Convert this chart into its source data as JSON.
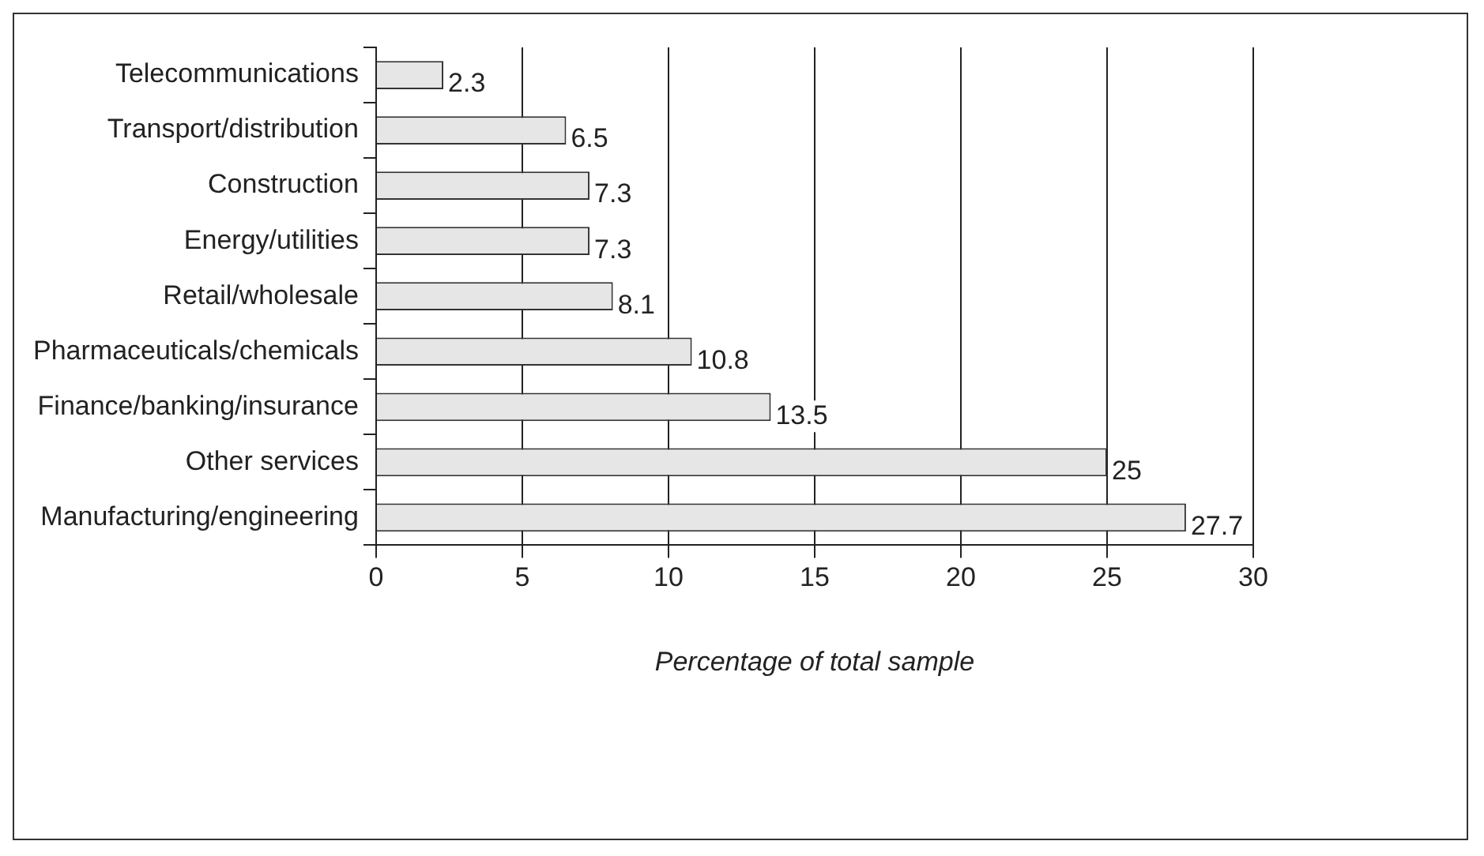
{
  "chart_data": {
    "type": "bar",
    "orientation": "horizontal",
    "xlabel": "Percentage of total sample",
    "categories": [
      "Telecommunications",
      "Transport/distribution",
      "Construction",
      "Energy/utilities",
      "Retail/wholesale",
      "Pharmaceuticals/chemicals",
      "Finance/banking/insurance",
      "Other services",
      "Manufacturing/engineering"
    ],
    "values": [
      2.3,
      6.5,
      7.3,
      7.3,
      8.1,
      10.8,
      13.5,
      25,
      27.7
    ],
    "color": "#e6e6e6",
    "xlim": [
      0,
      30
    ],
    "xticks": [
      0,
      5,
      10,
      15,
      20,
      25,
      30
    ],
    "grid": "x",
    "data_labels": true
  }
}
